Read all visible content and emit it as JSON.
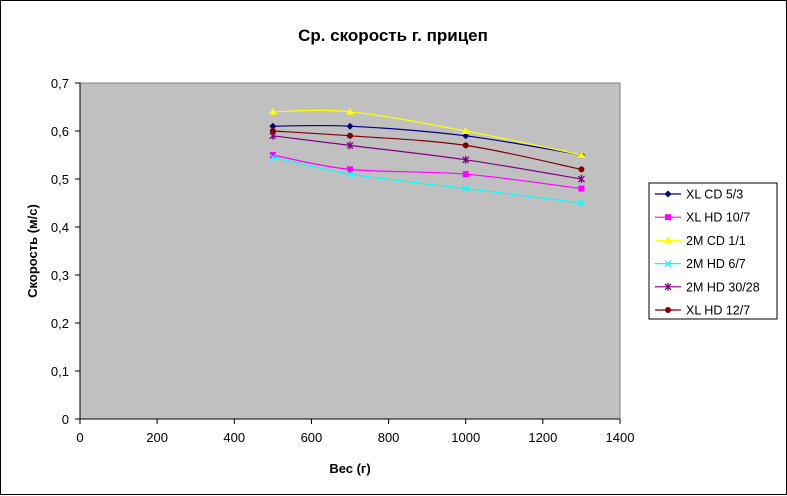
{
  "chart_data": {
    "type": "line",
    "title": "Ср. скорость г. прицеп",
    "xlabel": "Вес (г)",
    "ylabel": "Скорость (м/с)",
    "xlim": [
      0,
      1400
    ],
    "ylim": [
      0,
      0.7
    ],
    "x_ticks": [
      0,
      200,
      400,
      600,
      800,
      1000,
      1200,
      1400
    ],
    "y_ticks": [
      0,
      0.1,
      0.2,
      0.3,
      0.4,
      0.5,
      0.6,
      0.7
    ],
    "x_tick_labels": [
      "0",
      "200",
      "400",
      "600",
      "800",
      "1000",
      "1200",
      "1400"
    ],
    "y_tick_labels": [
      "0",
      "0,1",
      "0,2",
      "0,3",
      "0,4",
      "0,5",
      "0,6",
      "0,7"
    ],
    "plot_background": "#c0c0c0",
    "grid": false,
    "legend_position": "right",
    "x": [
      500,
      700,
      1000,
      1300
    ],
    "series": [
      {
        "name": "XL CD 5/3",
        "values": [
          0.61,
          0.61,
          0.59,
          0.55
        ],
        "color": "#000080",
        "marker": "diamond"
      },
      {
        "name": "XL HD 10/7",
        "values": [
          0.55,
          0.52,
          0.51,
          0.48
        ],
        "color": "#ff00ff",
        "marker": "square"
      },
      {
        "name": "2M CD 1/1",
        "values": [
          0.64,
          0.64,
          0.6,
          0.55
        ],
        "color": "#ffff00",
        "marker": "triangle"
      },
      {
        "name": "2M HD 6/7",
        "values": [
          0.545,
          0.51,
          0.48,
          0.45
        ],
        "color": "#00ffff",
        "marker": "x"
      },
      {
        "name": "2M HD 30/28",
        "values": [
          0.59,
          0.57,
          0.54,
          0.5
        ],
        "color": "#800080",
        "marker": "star"
      },
      {
        "name": "XL HD 12/7",
        "values": [
          0.6,
          0.59,
          0.57,
          0.52
        ],
        "color": "#800000",
        "marker": "circle"
      }
    ]
  }
}
